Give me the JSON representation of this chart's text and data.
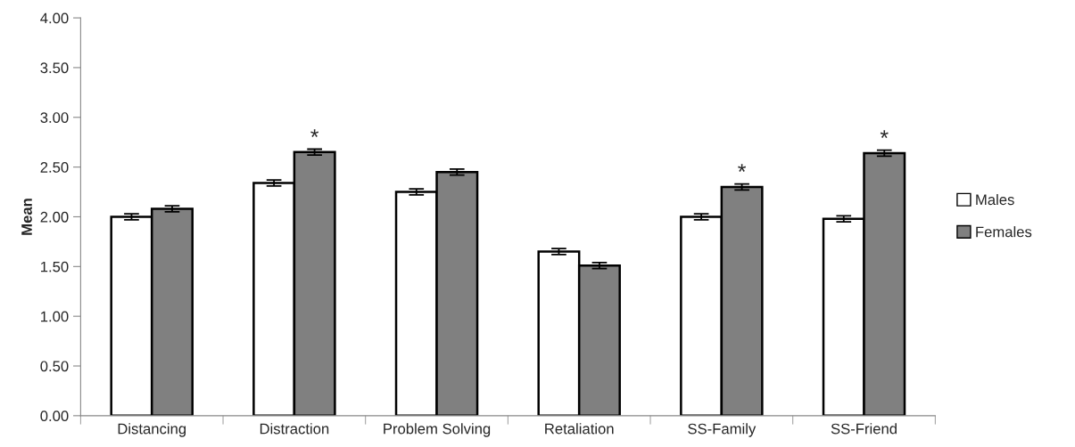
{
  "chart_data": {
    "type": "bar",
    "ylabel": "Mean",
    "categories": [
      "Distancing",
      "Distraction",
      "Problem Solving",
      "Retaliation",
      "SS-Family",
      "SS-Friend"
    ],
    "series": [
      {
        "name": "Males",
        "color": "#ffffff",
        "values": [
          2.0,
          2.34,
          2.25,
          1.65,
          2.0,
          1.98
        ],
        "errors": [
          0.03,
          0.03,
          0.03,
          0.03,
          0.03,
          0.03
        ]
      },
      {
        "name": "Females",
        "color": "#808080",
        "values": [
          2.08,
          2.65,
          2.45,
          1.51,
          2.3,
          2.64
        ],
        "errors": [
          0.03,
          0.03,
          0.03,
          0.03,
          0.03,
          0.03
        ]
      }
    ],
    "ylim": [
      0,
      4
    ],
    "yticks": [
      {
        "value": 0,
        "label": "0.00"
      },
      {
        "value": 0.5,
        "label": "0.50"
      },
      {
        "value": 1,
        "label": "1.00"
      },
      {
        "value": 1.5,
        "label": "1.50"
      },
      {
        "value": 2,
        "label": "2.00"
      },
      {
        "value": 2.5,
        "label": "2.50"
      },
      {
        "value": 3,
        "label": "3.00"
      },
      {
        "value": 3.5,
        "label": "3.50"
      },
      {
        "value": 4,
        "label": "4.00"
      }
    ],
    "annotations": [
      {
        "text": "*",
        "x": "Distraction",
        "y": 2.68
      },
      {
        "text": "*",
        "x": "SS-Family",
        "y": 2.33
      },
      {
        "text": "*",
        "x": "SS-Friend",
        "y": 2.67
      }
    ],
    "grid": false,
    "legend": "right"
  }
}
